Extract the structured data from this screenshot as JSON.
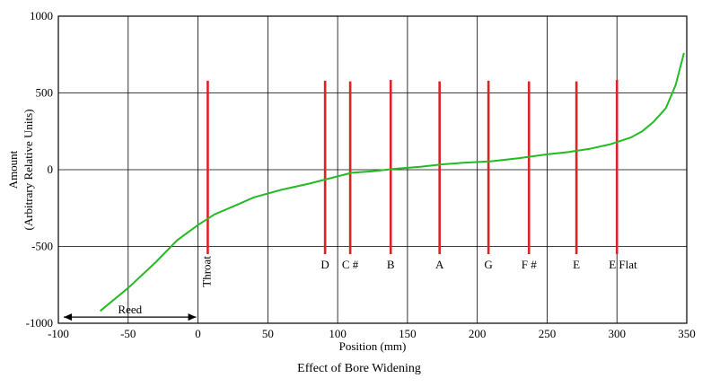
{
  "chart_data": {
    "type": "line",
    "title": "Effect of Bore Widening",
    "xlabel": "Position (mm)",
    "ylabel_line1": "Amount",
    "ylabel_line2": "(Arbitrary Relative Units)",
    "xlim": [
      -100,
      350
    ],
    "ylim": [
      -1000,
      1000
    ],
    "xticks": [
      -100,
      -50,
      0,
      50,
      100,
      150,
      200,
      250,
      300,
      350
    ],
    "yticks": [
      -1000,
      -500,
      0,
      500,
      1000
    ],
    "grid": true,
    "line_color": "#22bb22",
    "marker_color": "#dd2222",
    "series": [
      {
        "x": [
          -70,
          -50,
          -30,
          -15,
          0,
          12,
          25,
          40,
          60,
          80,
          95,
          110,
          125,
          140,
          160,
          175,
          190,
          210,
          230,
          250,
          265,
          280,
          295,
          310,
          318,
          326,
          335,
          342,
          348
        ],
        "y": [
          -920,
          -770,
          -600,
          -460,
          -360,
          -290,
          -240,
          -180,
          -130,
          -90,
          -55,
          -20,
          -10,
          5,
          20,
          35,
          45,
          55,
          75,
          100,
          115,
          135,
          165,
          210,
          250,
          310,
          400,
          550,
          760
        ]
      }
    ],
    "markers": [
      {
        "label": "Throat",
        "x": 7,
        "y_top": 580,
        "y_bottom": -550,
        "rotated": true
      },
      {
        "label": "D",
        "x": 91,
        "y_top": 580,
        "y_bottom": -550
      },
      {
        "label": "C #",
        "x": 109,
        "y_top": 575,
        "y_bottom": -550
      },
      {
        "label": "B",
        "x": 138,
        "y_top": 585,
        "y_bottom": -550
      },
      {
        "label": "A",
        "x": 173,
        "y_top": 575,
        "y_bottom": -550
      },
      {
        "label": "G",
        "x": 208,
        "y_top": 580,
        "y_bottom": -550
      },
      {
        "label": "F #",
        "x": 237,
        "y_top": 575,
        "y_bottom": -550
      },
      {
        "label": "E",
        "x": 271,
        "y_top": 575,
        "y_bottom": -550
      },
      {
        "label": "E Flat",
        "x": 300,
        "y_top": 585,
        "y_bottom": -550
      }
    ],
    "range_annotation": {
      "label": "Reed",
      "x_start": -100,
      "x_end": 0,
      "y": -960
    }
  }
}
